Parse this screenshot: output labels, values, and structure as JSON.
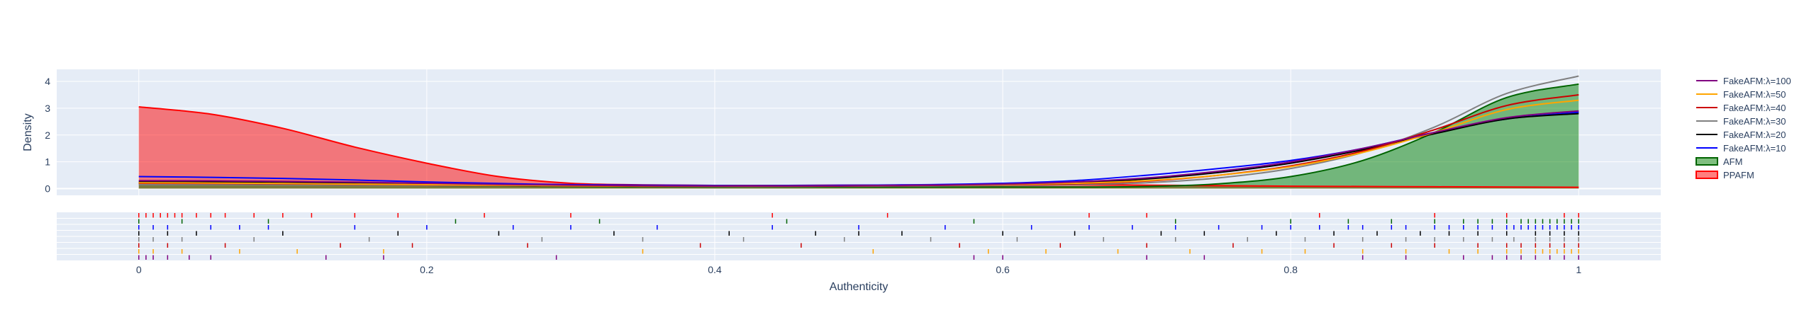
{
  "chart_data": {
    "type": "area",
    "title": "",
    "xlabel": "Authenticity",
    "ylabel": "Density",
    "xlim": [
      -0.057,
      1.057
    ],
    "ylim": [
      -0.25,
      4.45
    ],
    "x_ticks": [
      "0",
      "0.2",
      "0.4",
      "0.6",
      "0.8",
      "1"
    ],
    "x_tick_values": [
      0,
      0.2,
      0.4,
      0.6,
      0.8,
      1
    ],
    "y_ticks": [
      "0",
      "1",
      "2",
      "3",
      "4"
    ],
    "y_tick_values": [
      0,
      1,
      2,
      3,
      4
    ],
    "grid": true,
    "legend_position": "right",
    "x": [
      0,
      0.05,
      0.1,
      0.15,
      0.2,
      0.25,
      0.3,
      0.35,
      0.4,
      0.45,
      0.5,
      0.55,
      0.6,
      0.65,
      0.7,
      0.75,
      0.8,
      0.85,
      0.9,
      0.95,
      1
    ],
    "series": [
      {
        "name": "PPAFM",
        "kind": "area",
        "color": "#ff0000",
        "fill": "rgba(255,0,0,0.5)",
        "values": [
          3.05,
          2.78,
          2.25,
          1.55,
          0.95,
          0.45,
          0.2,
          0.14,
          0.12,
          0.12,
          0.13,
          0.14,
          0.15,
          0.15,
          0.13,
          0.11,
          0.09,
          0.08,
          0.07,
          0.06,
          0.05
        ]
      },
      {
        "name": "AFM",
        "kind": "area",
        "color": "#006400",
        "fill": "rgba(0,128,0,0.5)",
        "values": [
          0.2,
          0.19,
          0.17,
          0.14,
          0.12,
          0.1,
          0.08,
          0.07,
          0.06,
          0.06,
          0.06,
          0.06,
          0.06,
          0.06,
          0.08,
          0.18,
          0.45,
          1.05,
          2.1,
          3.4,
          3.9
        ]
      },
      {
        "name": "FakeAFM:λ=10",
        "kind": "line",
        "color": "#0000ff",
        "values": [
          0.45,
          0.42,
          0.38,
          0.32,
          0.25,
          0.19,
          0.15,
          0.13,
          0.12,
          0.12,
          0.13,
          0.15,
          0.2,
          0.3,
          0.5,
          0.75,
          1.05,
          1.5,
          2.1,
          2.6,
          2.85
        ]
      },
      {
        "name": "FakeAFM:λ=20",
        "kind": "line",
        "color": "#000000",
        "values": [
          0.25,
          0.24,
          0.22,
          0.2,
          0.17,
          0.14,
          0.12,
          0.11,
          0.1,
          0.1,
          0.11,
          0.12,
          0.15,
          0.22,
          0.36,
          0.6,
          0.95,
          1.45,
          2.05,
          2.6,
          2.8
        ]
      },
      {
        "name": "FakeAFM:λ=30",
        "kind": "line",
        "color": "#808080",
        "values": [
          0.15,
          0.15,
          0.14,
          0.13,
          0.12,
          0.11,
          0.1,
          0.09,
          0.08,
          0.08,
          0.09,
          0.1,
          0.12,
          0.15,
          0.22,
          0.4,
          0.75,
          1.35,
          2.3,
          3.55,
          4.2
        ]
      },
      {
        "name": "FakeAFM:λ=40",
        "kind": "line",
        "color": "#cc0000",
        "values": [
          0.2,
          0.19,
          0.18,
          0.16,
          0.14,
          0.12,
          0.1,
          0.09,
          0.09,
          0.09,
          0.1,
          0.12,
          0.14,
          0.18,
          0.28,
          0.5,
          0.85,
          1.4,
          2.2,
          3.1,
          3.5
        ]
      },
      {
        "name": "FakeAFM:λ=50",
        "kind": "line",
        "color": "#ffa500",
        "values": [
          0.22,
          0.21,
          0.19,
          0.17,
          0.15,
          0.13,
          0.11,
          0.1,
          0.1,
          0.1,
          0.11,
          0.13,
          0.15,
          0.2,
          0.3,
          0.5,
          0.82,
          1.35,
          2.1,
          2.95,
          3.3
        ]
      },
      {
        "name": "FakeAFM:λ=100",
        "kind": "line",
        "color": "#800080",
        "values": [
          0.3,
          0.29,
          0.27,
          0.24,
          0.2,
          0.16,
          0.13,
          0.11,
          0.1,
          0.1,
          0.11,
          0.13,
          0.17,
          0.25,
          0.4,
          0.65,
          1.0,
          1.5,
          2.1,
          2.65,
          2.9
        ]
      }
    ],
    "rug": {
      "series_order": [
        "PPAFM",
        "AFM",
        "FakeAFM:λ=10",
        "FakeAFM:λ=20",
        "FakeAFM:λ=30",
        "FakeAFM:λ=40",
        "FakeAFM:λ=50",
        "FakeAFM:λ=100"
      ],
      "points": {
        "PPAFM": [
          0.0,
          0.005,
          0.01,
          0.015,
          0.02,
          0.025,
          0.03,
          0.04,
          0.05,
          0.06,
          0.08,
          0.1,
          0.12,
          0.15,
          0.18,
          0.24,
          0.3,
          0.44,
          0.52,
          0.66,
          0.7,
          0.82,
          0.9,
          0.95,
          0.99,
          1.0
        ],
        "AFM": [
          0.0,
          0.03,
          0.09,
          0.22,
          0.32,
          0.45,
          0.58,
          0.72,
          0.8,
          0.84,
          0.87,
          0.9,
          0.92,
          0.93,
          0.94,
          0.95,
          0.96,
          0.965,
          0.97,
          0.975,
          0.98,
          0.985,
          0.99,
          0.995,
          1.0
        ],
        "FakeAFM:λ=10": [
          0.0,
          0.01,
          0.02,
          0.05,
          0.07,
          0.09,
          0.15,
          0.2,
          0.26,
          0.3,
          0.36,
          0.44,
          0.5,
          0.56,
          0.62,
          0.66,
          0.69,
          0.72,
          0.75,
          0.78,
          0.8,
          0.82,
          0.84,
          0.85,
          0.87,
          0.88,
          0.9,
          0.91,
          0.92,
          0.93,
          0.94,
          0.95,
          0.955,
          0.96,
          0.965,
          0.97,
          0.975,
          0.98,
          0.985,
          0.99,
          0.995,
          1.0
        ],
        "FakeAFM:λ=20": [
          0.0,
          0.02,
          0.04,
          0.1,
          0.18,
          0.25,
          0.33,
          0.41,
          0.47,
          0.5,
          0.53,
          0.6,
          0.65,
          0.71,
          0.74,
          0.79,
          0.83,
          0.86,
          0.89,
          0.91,
          0.93,
          0.95,
          0.97,
          0.98,
          0.99,
          1.0
        ],
        "FakeAFM:λ=30": [
          0.0,
          0.01,
          0.03,
          0.08,
          0.16,
          0.28,
          0.35,
          0.42,
          0.49,
          0.55,
          0.61,
          0.67,
          0.72,
          0.77,
          0.81,
          0.85,
          0.88,
          0.9,
          0.92,
          0.94,
          0.955,
          0.97,
          0.98,
          0.99,
          1.0
        ],
        "FakeAFM:λ=40": [
          0.0,
          0.02,
          0.06,
          0.14,
          0.19,
          0.27,
          0.39,
          0.46,
          0.57,
          0.64,
          0.7,
          0.76,
          0.83,
          0.87,
          0.9,
          0.93,
          0.95,
          0.96,
          0.97,
          0.98,
          0.99,
          1.0
        ],
        "FakeAFM:λ=50": [
          0.0,
          0.01,
          0.03,
          0.07,
          0.11,
          0.17,
          0.35,
          0.51,
          0.59,
          0.63,
          0.68,
          0.73,
          0.78,
          0.81,
          0.85,
          0.88,
          0.91,
          0.93,
          0.95,
          0.96,
          0.97,
          0.975,
          0.98,
          0.985,
          0.99,
          0.995,
          1.0
        ],
        "FakeAFM:λ=100": [
          0.0,
          0.005,
          0.01,
          0.02,
          0.035,
          0.05,
          0.13,
          0.17,
          0.29,
          0.58,
          0.6,
          0.7,
          0.74,
          0.85,
          0.88,
          0.92,
          0.94,
          0.95,
          0.96,
          0.97,
          0.98,
          0.99,
          1.0
        ]
      }
    },
    "legend": [
      {
        "name": "FakeAFM:λ=100",
        "color": "#800080",
        "kind": "line"
      },
      {
        "name": "FakeAFM:λ=50",
        "color": "#ffa500",
        "kind": "line"
      },
      {
        "name": "FakeAFM:λ=40",
        "color": "#cc0000",
        "kind": "line"
      },
      {
        "name": "FakeAFM:λ=30",
        "color": "#808080",
        "kind": "line"
      },
      {
        "name": "FakeAFM:λ=20",
        "color": "#000000",
        "kind": "line"
      },
      {
        "name": "FakeAFM:λ=10",
        "color": "#0000ff",
        "kind": "line"
      },
      {
        "name": "AFM",
        "color": "#006400",
        "fill": "rgba(0,128,0,0.5)",
        "kind": "area"
      },
      {
        "name": "PPAFM",
        "color": "#ff0000",
        "fill": "rgba(255,0,0,0.5)",
        "kind": "area"
      }
    ],
    "colors": {
      "plot_bg": "#e5ecf6",
      "grid": "#ffffff",
      "text": "#2a3f5f"
    }
  }
}
